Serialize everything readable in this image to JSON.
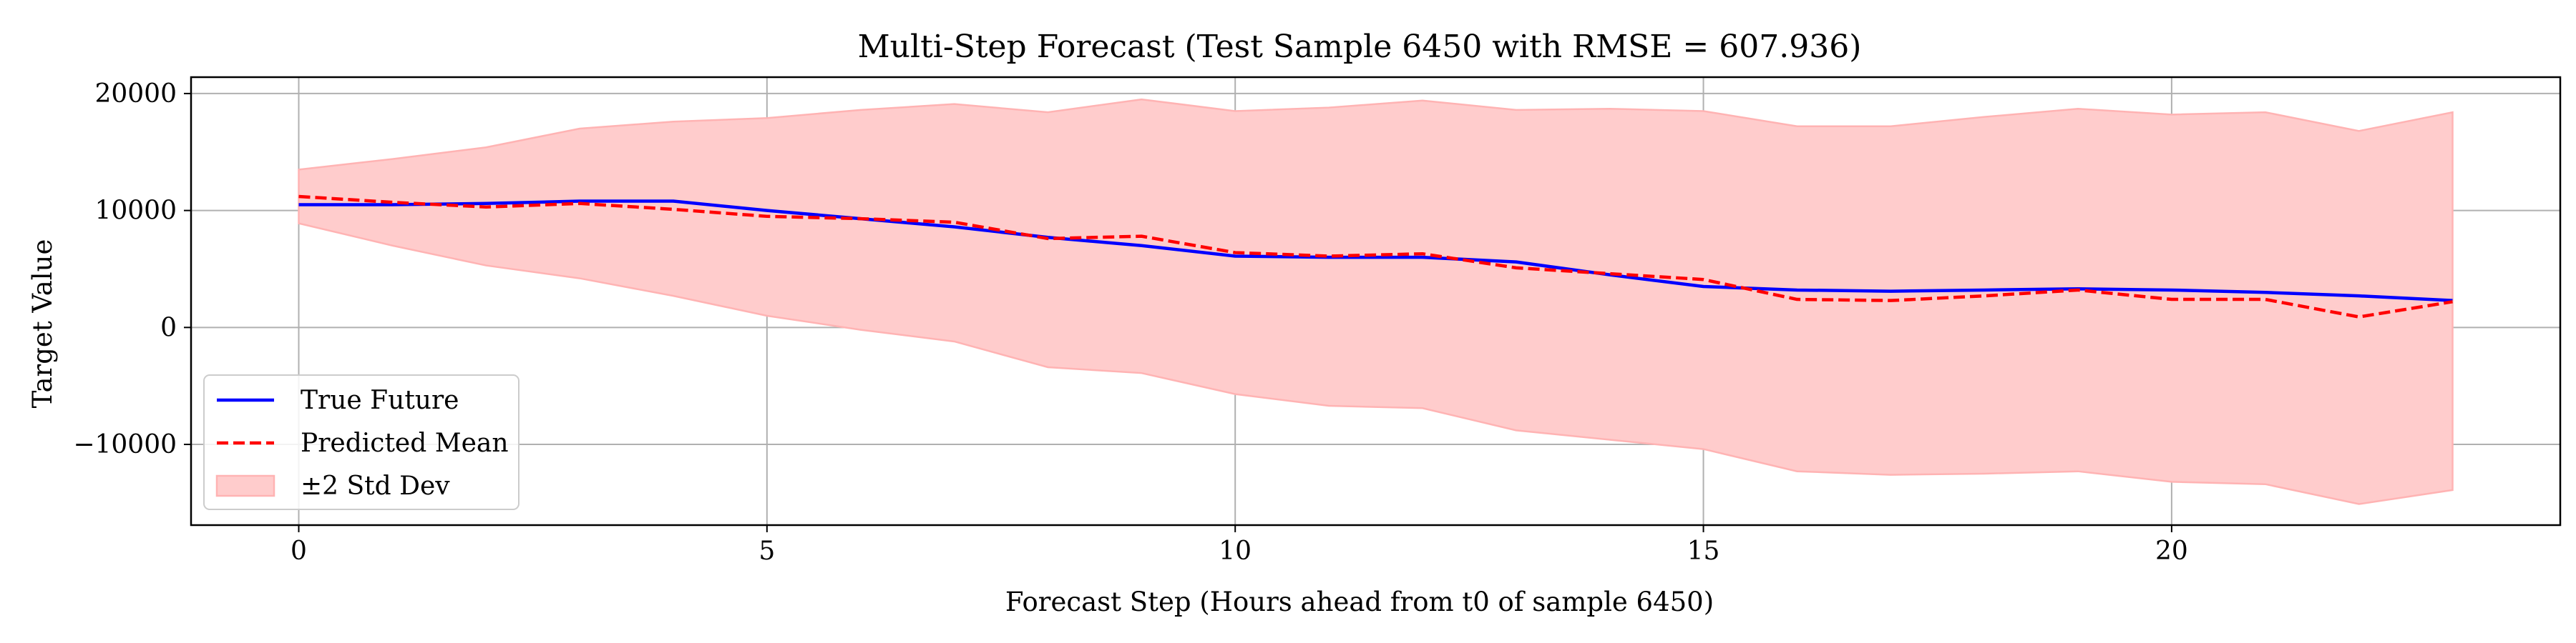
{
  "chart_data": {
    "type": "line",
    "title": "Multi-Step Forecast (Test Sample 6450 with RMSE = 607.936)",
    "xlabel": "Forecast Step (Hours ahead from t0 of sample 6450)",
    "ylabel": "Target Value",
    "xlim": [
      -1.15,
      24.15
    ],
    "ylim": [
      -16900,
      21400
    ],
    "x_ticks": [
      0,
      5,
      10,
      15,
      20
    ],
    "x_tick_labels": [
      "0",
      "5",
      "10",
      "15",
      "20"
    ],
    "y_ticks": [
      20000,
      10000,
      0,
      -10000
    ],
    "y_tick_labels": [
      "20000",
      "10000",
      "0",
      "−10000"
    ],
    "grid": true,
    "legend_position": "lower-left",
    "x": [
      0,
      1,
      2,
      3,
      4,
      5,
      6,
      7,
      8,
      9,
      10,
      11,
      12,
      13,
      14,
      15,
      16,
      17,
      18,
      19,
      20,
      21,
      22,
      23
    ],
    "series": [
      {
        "name": "True Future",
        "style": "solid",
        "color": "#0000ff",
        "values": [
          10500,
          10500,
          10600,
          10800,
          10800,
          10000,
          9300,
          8600,
          7700,
          7000,
          6100,
          6000,
          6000,
          5600,
          4500,
          3500,
          3200,
          3100,
          3200,
          3300,
          3200,
          3000,
          2700,
          2300
        ]
      },
      {
        "name": "Predicted Mean",
        "style": "dashed",
        "color": "#ff0000",
        "values": [
          11200,
          10700,
          10300,
          10600,
          10100,
          9500,
          9300,
          9000,
          7600,
          7800,
          6400,
          6100,
          6300,
          5100,
          4600,
          4100,
          2400,
          2300,
          2700,
          3200,
          2400,
          2400,
          900,
          2200
        ]
      }
    ],
    "band": {
      "name": "±2 Std Dev",
      "fill": "#ffcccc",
      "edge": "#ffb3b3",
      "upper": [
        13500,
        14400,
        15400,
        17000,
        17600,
        17900,
        18600,
        19100,
        18400,
        19500,
        18500,
        18800,
        19400,
        18600,
        18700,
        18500,
        17200,
        17200,
        18000,
        18700,
        18200,
        18400,
        16800,
        18400
      ],
      "lower": [
        8900,
        7000,
        5300,
        4200,
        2700,
        1000,
        -200,
        -1200,
        -3400,
        -3900,
        -5700,
        -6700,
        -6900,
        -8800,
        -9600,
        -10400,
        -12300,
        -12600,
        -12500,
        -12300,
        -13200,
        -13400,
        -15100,
        -13900
      ]
    }
  }
}
